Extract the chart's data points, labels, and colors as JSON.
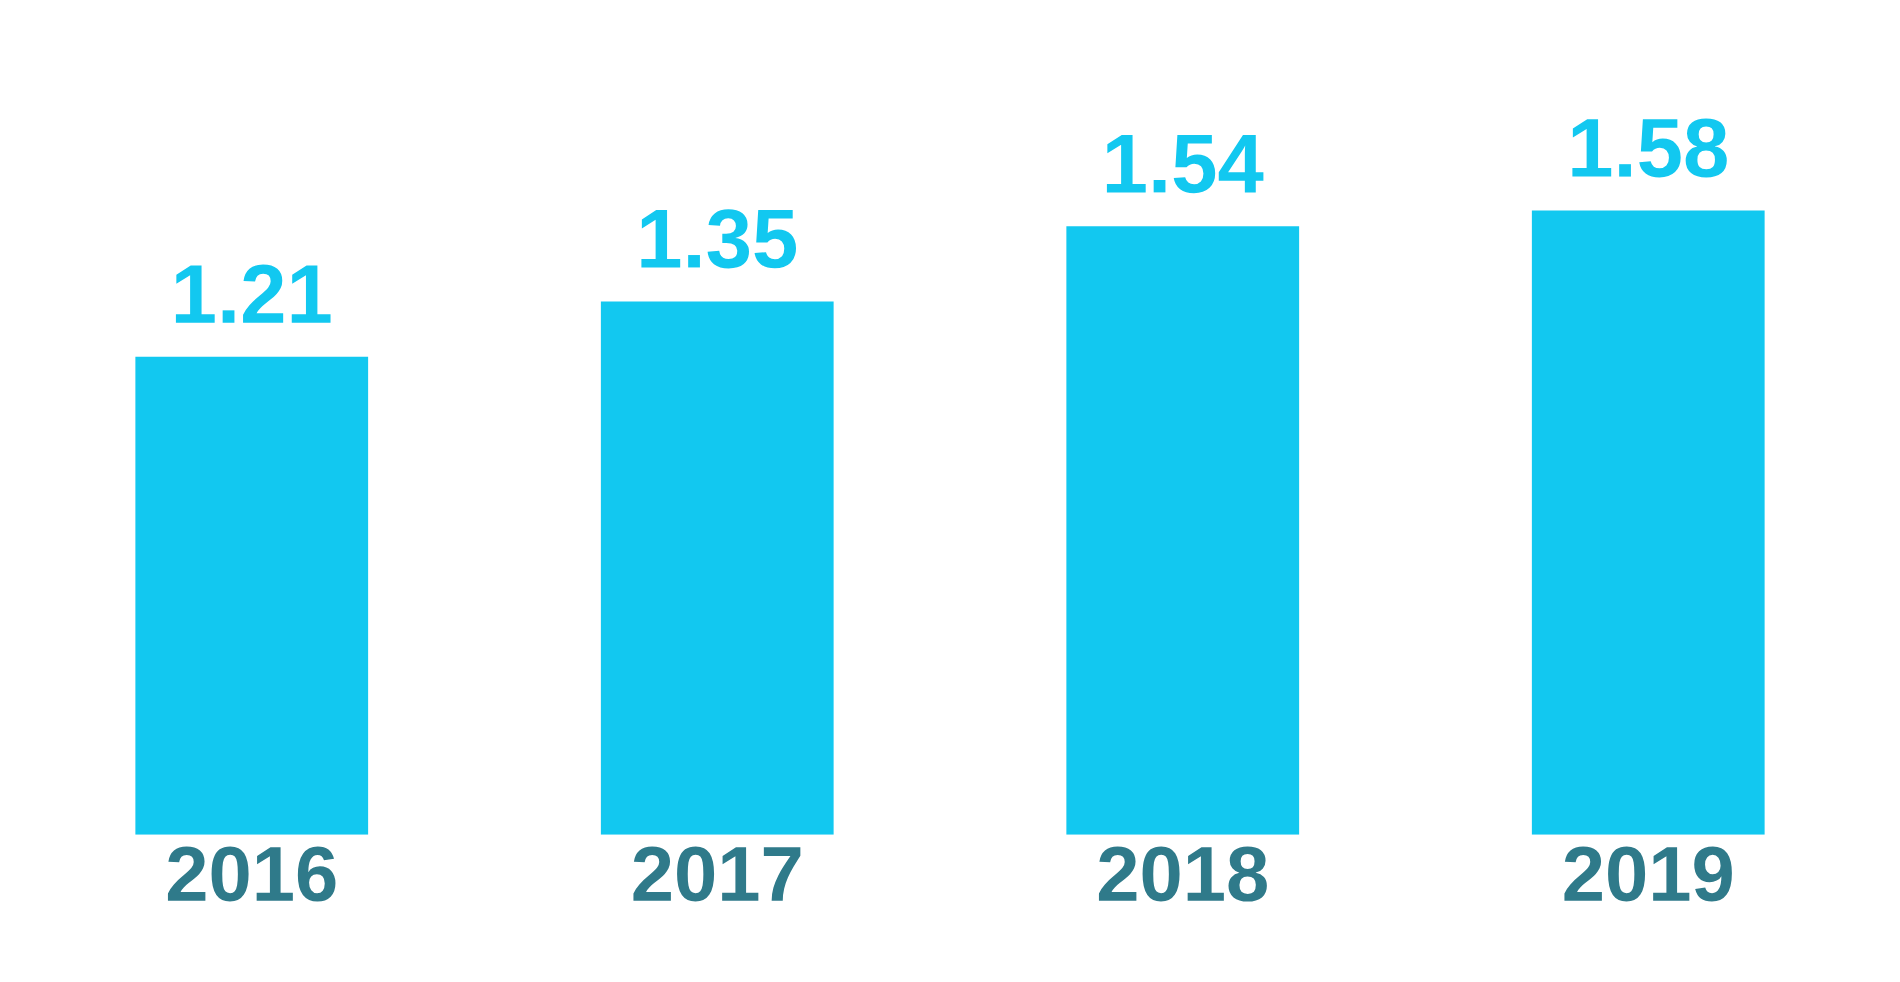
{
  "chart_data": {
    "type": "bar",
    "categories": [
      "2016",
      "2017",
      "2018",
      "2019"
    ],
    "values": [
      1.21,
      1.35,
      1.54,
      1.58
    ],
    "color": "#12c8f0",
    "data_labels": true,
    "tick_labels": "x",
    "grid": false
  }
}
